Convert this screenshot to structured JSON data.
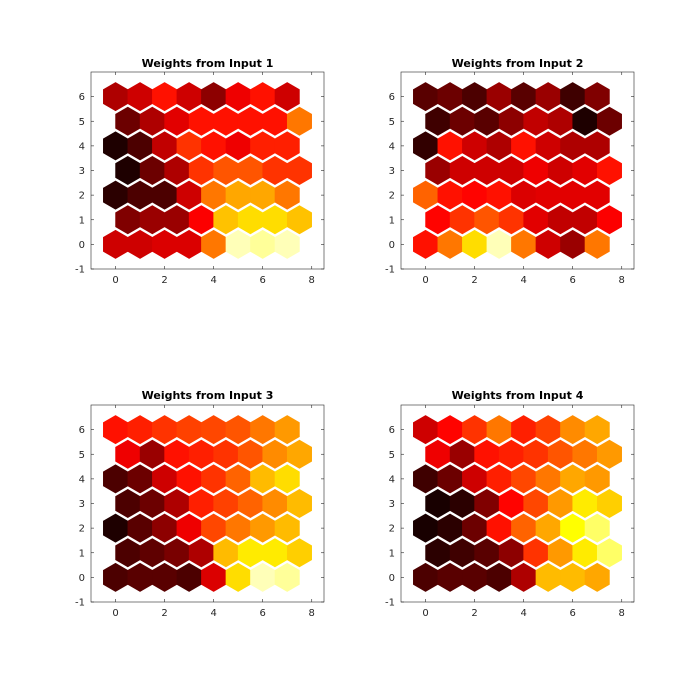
{
  "chart_data": [
    {
      "type": "heatmap",
      "title": "Weights from Input 1",
      "xlim": [
        -1,
        8.5
      ],
      "ylim": [
        -1,
        7
      ],
      "xticks": [
        0,
        2,
        4,
        6,
        8
      ],
      "yticks": [
        -1,
        0,
        1,
        2,
        3,
        4,
        5,
        6
      ],
      "colormap": "hot",
      "grid_rows": 7,
      "grid_cols": 8,
      "value_range": [
        0,
        1
      ],
      "values": [
        [
          0.3,
          0.3,
          0.32,
          0.32,
          0.55,
          0.93,
          0.9,
          0.93
        ],
        [
          0.18,
          0.22,
          0.22,
          0.37,
          0.66,
          0.7,
          0.7,
          0.66
        ],
        [
          0.05,
          0.1,
          0.1,
          0.3,
          0.55,
          0.62,
          0.62,
          0.55
        ],
        [
          0.03,
          0.15,
          0.25,
          0.45,
          0.5,
          0.5,
          0.45,
          0.45
        ],
        [
          0.03,
          0.1,
          0.28,
          0.45,
          0.4,
          0.35,
          0.42,
          0.42
        ],
        [
          0.15,
          0.25,
          0.33,
          0.4,
          0.4,
          0.4,
          0.4,
          0.55
        ],
        [
          0.25,
          0.3,
          0.4,
          0.3,
          0.2,
          0.35,
          0.4,
          0.3
        ]
      ]
    },
    {
      "type": "heatmap",
      "title": "Weights from Input 2",
      "xlim": [
        -1,
        8.5
      ],
      "ylim": [
        -1,
        7
      ],
      "xticks": [
        0,
        2,
        4,
        6,
        8
      ],
      "yticks": [
        -1,
        0,
        1,
        2,
        3,
        4,
        5,
        6
      ],
      "colormap": "hot",
      "grid_rows": 7,
      "grid_cols": 8,
      "value_range": [
        0,
        1
      ],
      "values": [
        [
          0.4,
          0.55,
          0.7,
          0.93,
          0.55,
          0.3,
          0.22,
          0.55
        ],
        [
          0.38,
          0.45,
          0.5,
          0.45,
          0.33,
          0.28,
          0.28,
          0.37
        ],
        [
          0.52,
          0.4,
          0.38,
          0.4,
          0.32,
          0.33,
          0.33,
          0.33
        ],
        [
          0.22,
          0.3,
          0.3,
          0.3,
          0.35,
          0.3,
          0.33,
          0.4
        ],
        [
          0.06,
          0.4,
          0.3,
          0.25,
          0.4,
          0.3,
          0.25,
          0.25
        ],
        [
          0.08,
          0.15,
          0.12,
          0.2,
          0.28,
          0.25,
          0.03,
          0.15
        ],
        [
          0.12,
          0.15,
          0.1,
          0.22,
          0.12,
          0.22,
          0.08,
          0.18
        ]
      ]
    },
    {
      "type": "heatmap",
      "title": "Weights from Input 3",
      "xlim": [
        -1,
        8.5
      ],
      "ylim": [
        -1,
        7
      ],
      "xticks": [
        0,
        2,
        4,
        6,
        8
      ],
      "yticks": [
        -1,
        0,
        1,
        2,
        3,
        4,
        5,
        6
      ],
      "colormap": "hot",
      "grid_rows": 7,
      "grid_cols": 8,
      "value_range": [
        0,
        1
      ],
      "values": [
        [
          0.1,
          0.12,
          0.12,
          0.1,
          0.32,
          0.7,
          0.93,
          0.9
        ],
        [
          0.1,
          0.13,
          0.17,
          0.25,
          0.65,
          0.72,
          0.72,
          0.68
        ],
        [
          0.03,
          0.12,
          0.2,
          0.35,
          0.48,
          0.55,
          0.6,
          0.65
        ],
        [
          0.1,
          0.15,
          0.25,
          0.42,
          0.47,
          0.52,
          0.58,
          0.65
        ],
        [
          0.1,
          0.15,
          0.3,
          0.4,
          0.45,
          0.52,
          0.65,
          0.7
        ],
        [
          0.35,
          0.22,
          0.4,
          0.42,
          0.45,
          0.5,
          0.58,
          0.62
        ],
        [
          0.4,
          0.42,
          0.45,
          0.47,
          0.48,
          0.5,
          0.55,
          0.6
        ]
      ]
    },
    {
      "type": "heatmap",
      "title": "Weights from Input 4",
      "xlim": [
        -1,
        8.5
      ],
      "ylim": [
        -1,
        7
      ],
      "xticks": [
        0,
        2,
        4,
        6,
        8
      ],
      "yticks": [
        -1,
        0,
        1,
        2,
        3,
        4,
        5,
        6
      ],
      "colormap": "hot",
      "grid_rows": 7,
      "grid_cols": 8,
      "value_range": [
        0,
        1
      ],
      "values": [
        [
          0.1,
          0.12,
          0.12,
          0.1,
          0.25,
          0.65,
          0.65,
          0.62
        ],
        [
          0.05,
          0.08,
          0.12,
          0.2,
          0.45,
          0.6,
          0.72,
          0.85
        ],
        [
          0.02,
          0.05,
          0.15,
          0.4,
          0.52,
          0.62,
          0.75,
          0.85
        ],
        [
          0.02,
          0.05,
          0.18,
          0.38,
          0.48,
          0.6,
          0.72,
          0.68
        ],
        [
          0.08,
          0.15,
          0.3,
          0.42,
          0.48,
          0.55,
          0.62,
          0.6
        ],
        [
          0.35,
          0.22,
          0.4,
          0.42,
          0.45,
          0.5,
          0.55,
          0.6
        ],
        [
          0.3,
          0.38,
          0.45,
          0.55,
          0.42,
          0.47,
          0.58,
          0.62
        ]
      ]
    }
  ]
}
